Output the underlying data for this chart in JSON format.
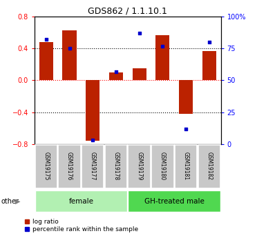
{
  "title": "GDS862 / 1.1.10.1",
  "samples": [
    "GSM19175",
    "GSM19176",
    "GSM19177",
    "GSM19178",
    "GSM19179",
    "GSM19180",
    "GSM19181",
    "GSM19182"
  ],
  "log_ratio": [
    0.48,
    0.63,
    -0.76,
    0.1,
    0.15,
    0.57,
    -0.42,
    0.37
  ],
  "percentile_rank": [
    82,
    75,
    3,
    57,
    87,
    77,
    12,
    80
  ],
  "ylim_left": [
    -0.8,
    0.8
  ],
  "ylim_right": [
    0,
    100
  ],
  "yticks_left": [
    -0.8,
    -0.4,
    0.0,
    0.4,
    0.8
  ],
  "yticks_right": [
    0,
    25,
    50,
    75,
    100
  ],
  "ytick_labels_right": [
    "0",
    "25",
    "50",
    "75",
    "100%"
  ],
  "group1_label": "female",
  "group2_label": "GH-treated male",
  "group1_color": "#b2f0b2",
  "group2_color": "#50d850",
  "bar_color": "#bb2200",
  "dot_color": "#0000cc",
  "legend_bar_label": "log ratio",
  "legend_dot_label": "percentile rank within the sample",
  "other_label": "other",
  "sample_box_color": "#c8c8c8",
  "bar_width": 0.6
}
